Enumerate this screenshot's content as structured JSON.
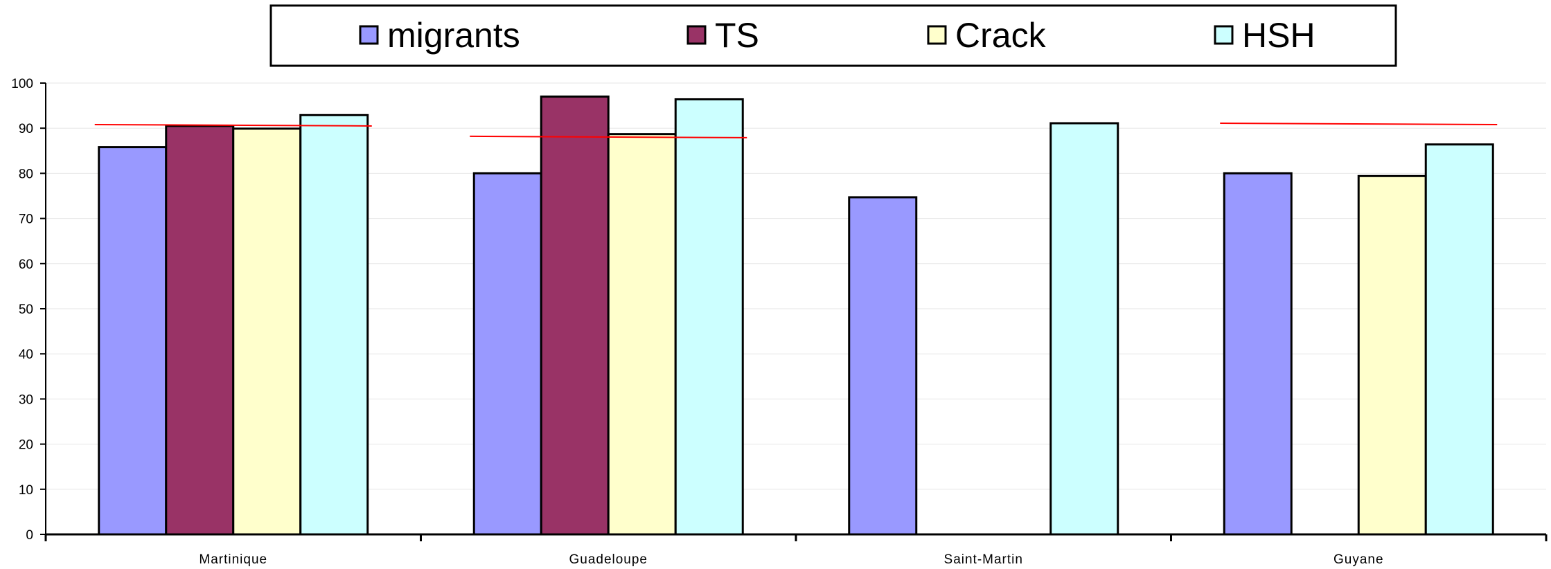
{
  "chart_data": {
    "type": "bar",
    "categories": [
      "Martinique",
      "Guadeloupe",
      "Saint-Martin",
      "Guyane"
    ],
    "series": [
      {
        "name": "migrants",
        "color": "#9999ff",
        "values": [
          85.8,
          80,
          74.7,
          80
        ]
      },
      {
        "name": "TS",
        "color": "#993366",
        "values": [
          90.5,
          97,
          null,
          null
        ]
      },
      {
        "name": "Crack",
        "color": "#ffffcc",
        "values": [
          89.9,
          88.7,
          null,
          79.4
        ]
      },
      {
        "name": "HSH",
        "color": "#ccffff",
        "values": [
          92.9,
          96.4,
          91.1,
          86.4
        ]
      }
    ],
    "reference_lines": [
      {
        "category": "Martinique",
        "start": 90.8,
        "end": 90.5,
        "color": "#ff0000"
      },
      {
        "category": "Guadeloupe",
        "start": 88.2,
        "end": 87.9,
        "color": "#ff0000"
      },
      {
        "category": "Guyane",
        "start": 91.1,
        "end": 90.8,
        "color": "#ff0000"
      }
    ],
    "yticks": [
      0,
      10,
      20,
      30,
      40,
      50,
      60,
      70,
      80,
      90,
      100
    ],
    "ylim": [
      0,
      100
    ],
    "grid": true,
    "legend_position": "top-center",
    "title": "",
    "xlabel": "",
    "ylabel": ""
  }
}
